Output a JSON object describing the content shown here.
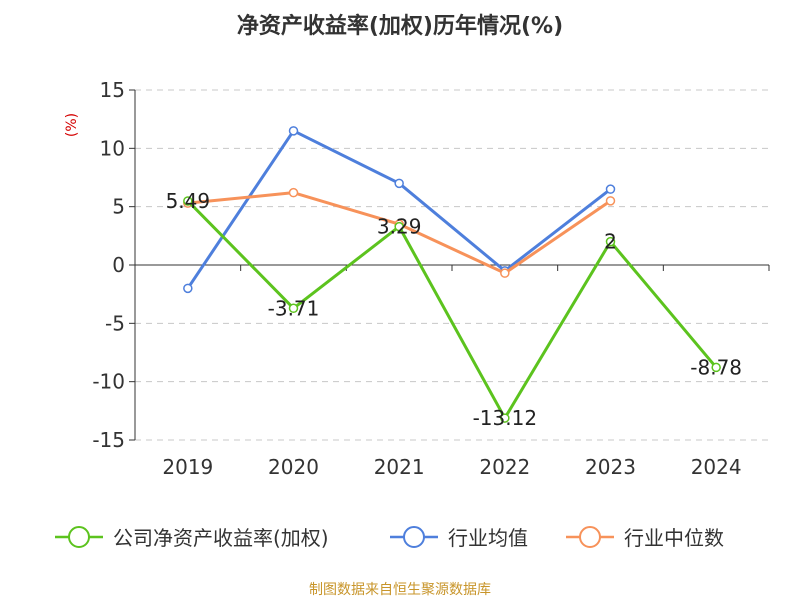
{
  "chart_data": {
    "type": "line",
    "title": "净资产收益率(加权)历年情况(%)",
    "ylabel": "(%)",
    "categories": [
      "2019",
      "2020",
      "2021",
      "2022",
      "2023",
      "2024"
    ],
    "ylim": [
      -15,
      15
    ],
    "yticks": [
      15,
      10,
      5,
      0,
      -5,
      -10,
      -15
    ],
    "grid": true,
    "legend_position": "bottom",
    "series": [
      {
        "name": "公司净资产收益率(加权)",
        "color": "#5cc31e",
        "values": [
          5.49,
          -3.71,
          3.29,
          -13.12,
          2,
          -8.78
        ],
        "labels": [
          "5.49",
          "-3.71",
          "3.29",
          "-13.12",
          "2",
          "-8.78"
        ]
      },
      {
        "name": "行业均值",
        "color": "#4e7fdc",
        "values": [
          -2.0,
          11.5,
          7.0,
          -0.5,
          6.5,
          null
        ]
      },
      {
        "name": "行业中位数",
        "color": "#f7925a",
        "values": [
          5.3,
          6.2,
          3.5,
          -0.7,
          5.5,
          null
        ]
      }
    ]
  },
  "source": "制图数据来自恒生聚源数据库"
}
